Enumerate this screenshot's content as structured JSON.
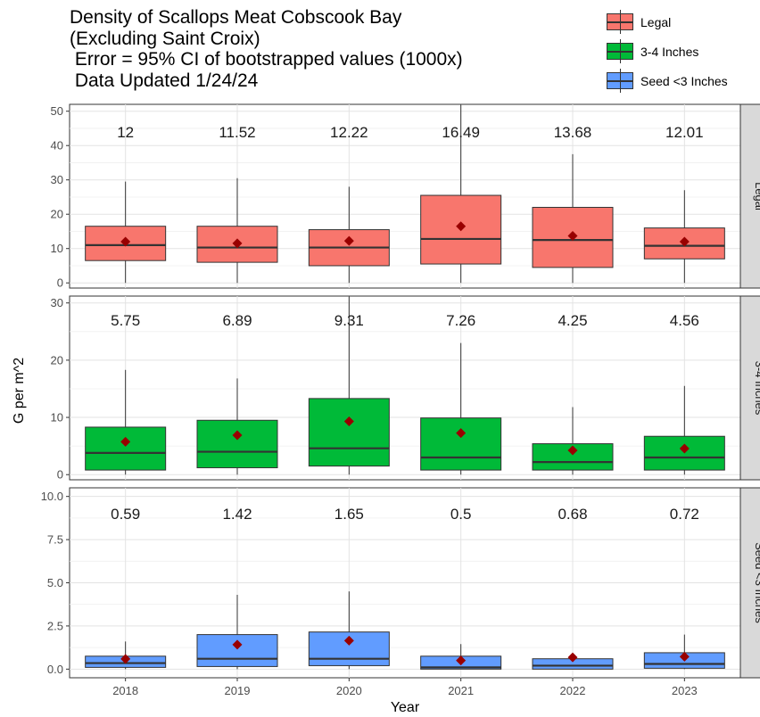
{
  "title_lines": [
    "Density of Scallops Meat Cobscook Bay",
    "(Excluding Saint Croix)",
    " Error = 95% CI of bootstrapped values (1000x)",
    " Data Updated 1/24/24"
  ],
  "legend": [
    {
      "label": "Legal",
      "color": "#F8766D"
    },
    {
      "label": "3-4 Inches",
      "color": "#00BA38"
    },
    {
      "label": "Seed <3 Inches",
      "color": "#619CFF"
    }
  ],
  "chart_data": {
    "type": "boxplot",
    "xlabel": "Year",
    "ylabel": "G per m^2",
    "categories": [
      "2018",
      "2019",
      "2020",
      "2021",
      "2022",
      "2023"
    ],
    "mean_marker_color": "#990000",
    "panels": [
      {
        "name": "Legal",
        "color": "#F8766D",
        "ylim": [
          -1.5,
          52
        ],
        "yticks": [
          0,
          10,
          20,
          30,
          40,
          50
        ],
        "ytick_labels": [
          "0",
          "10",
          "20",
          "30",
          "40",
          "50"
        ],
        "label_value": 44,
        "boxes": [
          {
            "low": 0,
            "q1": 6.5,
            "median": 11,
            "q3": 16.5,
            "high": 29.5,
            "mean": 12,
            "label": "12"
          },
          {
            "low": 0,
            "q1": 6,
            "median": 10.3,
            "q3": 16.5,
            "high": 30.5,
            "mean": 11.52,
            "label": "11.52"
          },
          {
            "low": 0,
            "q1": 5,
            "median": 10.3,
            "q3": 15.5,
            "high": 28,
            "mean": 12.22,
            "label": "12.22"
          },
          {
            "low": 0,
            "q1": 5.5,
            "median": 12.8,
            "q3": 25.5,
            "high": 55,
            "mean": 16.49,
            "label": "16.49"
          },
          {
            "low": 0,
            "q1": 4.5,
            "median": 12.5,
            "q3": 22,
            "high": 37.5,
            "mean": 13.68,
            "label": "13.68"
          },
          {
            "low": 0,
            "q1": 7,
            "median": 10.8,
            "q3": 16,
            "high": 27,
            "mean": 12.01,
            "label": "12.01"
          }
        ]
      },
      {
        "name": "3-4 Inches",
        "color": "#00BA38",
        "ylim": [
          -0.9,
          31.2
        ],
        "yticks": [
          0,
          10,
          20,
          30
        ],
        "ytick_labels": [
          "0",
          "10",
          "20",
          "30"
        ],
        "label_value": 27,
        "boxes": [
          {
            "low": 0,
            "q1": 0.8,
            "median": 3.8,
            "q3": 8.3,
            "high": 18.3,
            "mean": 5.75,
            "label": "5.75"
          },
          {
            "low": 0,
            "q1": 1.2,
            "median": 4.0,
            "q3": 9.5,
            "high": 16.8,
            "mean": 6.89,
            "label": "6.89"
          },
          {
            "low": 0,
            "q1": 1.5,
            "median": 4.6,
            "q3": 13.3,
            "high": 32,
            "mean": 9.31,
            "label": "9.31"
          },
          {
            "low": 0,
            "q1": 0.8,
            "median": 3.0,
            "q3": 9.9,
            "high": 23,
            "mean": 7.26,
            "label": "7.26"
          },
          {
            "low": 0,
            "q1": 0.8,
            "median": 2.2,
            "q3": 5.4,
            "high": 11.8,
            "mean": 4.25,
            "label": "4.25"
          },
          {
            "low": 0,
            "q1": 0.8,
            "median": 3.0,
            "q3": 6.7,
            "high": 15.5,
            "mean": 4.56,
            "label": "4.56"
          }
        ]
      },
      {
        "name": "Seed <3 Inches",
        "color": "#619CFF",
        "ylim": [
          -0.5,
          10.5
        ],
        "yticks": [
          0,
          2.5,
          5,
          7.5,
          10
        ],
        "ytick_labels": [
          "0.0",
          "2.5",
          "5.0",
          "7.5",
          "10.0"
        ],
        "label_value": 9,
        "boxes": [
          {
            "low": 0,
            "q1": 0.1,
            "median": 0.35,
            "q3": 0.75,
            "high": 1.6,
            "mean": 0.59,
            "label": "0.59"
          },
          {
            "low": 0,
            "q1": 0.15,
            "median": 0.6,
            "q3": 2.0,
            "high": 4.3,
            "mean": 1.42,
            "label": "1.42"
          },
          {
            "low": 0,
            "q1": 0.2,
            "median": 0.6,
            "q3": 2.15,
            "high": 4.5,
            "mean": 1.65,
            "label": "1.65"
          },
          {
            "low": 0,
            "q1": 0.0,
            "median": 0.1,
            "q3": 0.75,
            "high": 1.45,
            "mean": 0.5,
            "label": "0.5"
          },
          {
            "low": 0,
            "q1": 0.0,
            "median": 0.2,
            "q3": 0.6,
            "high": 0.9,
            "mean": 0.68,
            "label": "0.68"
          },
          {
            "low": 0,
            "q1": 0.05,
            "median": 0.3,
            "q3": 0.95,
            "high": 2.0,
            "mean": 0.72,
            "label": "0.72"
          }
        ]
      }
    ]
  }
}
